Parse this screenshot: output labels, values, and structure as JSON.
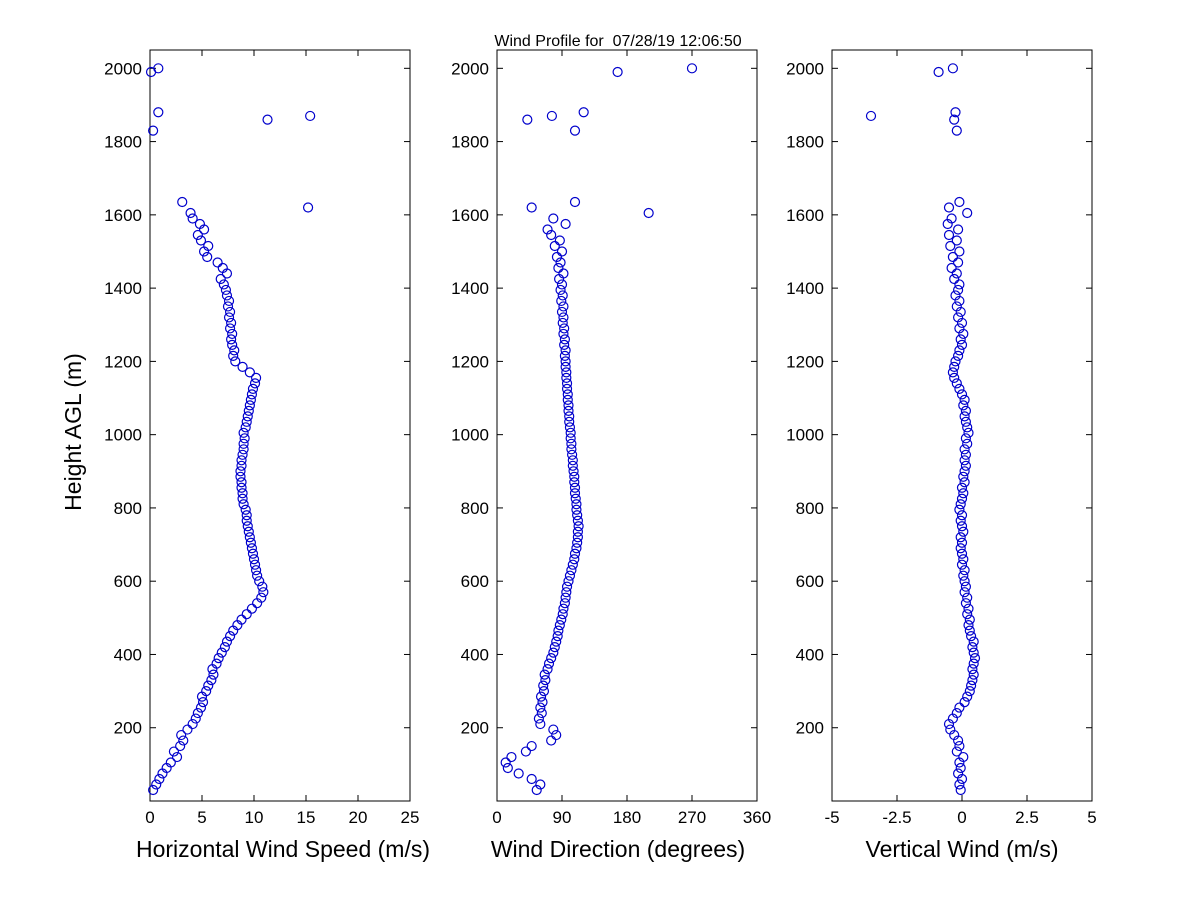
{
  "chart_data": {
    "type": "scatter",
    "title": "Wind Profile for  07/28/19 12:06:50",
    "ylabel": "Height AGL (m)",
    "ylim": [
      0,
      2050
    ],
    "yticks": [
      200,
      400,
      600,
      800,
      1000,
      1200,
      1400,
      1600,
      1800,
      2000
    ],
    "grid": false,
    "legend": "none",
    "marker": {
      "shape": "open-circle",
      "color": "#0000CC",
      "radius_px": 4.5
    },
    "colors": {
      "background": "#ffffff",
      "axis": "#000000"
    },
    "heights_m": [
      30,
      45,
      60,
      75,
      90,
      105,
      120,
      135,
      150,
      165,
      180,
      195,
      210,
      225,
      240,
      255,
      270,
      285,
      300,
      315,
      330,
      345,
      360,
      375,
      390,
      405,
      420,
      435,
      450,
      465,
      480,
      495,
      510,
      525,
      540,
      555,
      570,
      585,
      600,
      615,
      630,
      645,
      660,
      675,
      690,
      705,
      720,
      735,
      750,
      765,
      780,
      795,
      810,
      825,
      840,
      855,
      870,
      885,
      900,
      915,
      930,
      945,
      960,
      975,
      990,
      1005,
      1020,
      1035,
      1050,
      1065,
      1080,
      1095,
      1110,
      1125,
      1140,
      1155,
      1170,
      1185,
      1200,
      1215,
      1230,
      1245,
      1260,
      1275,
      1290,
      1305,
      1320,
      1335,
      1350,
      1365,
      1380,
      1395,
      1410,
      1425,
      1440,
      1455,
      1470,
      1485,
      1500,
      1515,
      1530,
      1545,
      1560,
      1575,
      1590,
      1605,
      1620,
      1635,
      1830,
      1860,
      1870,
      1880,
      1990,
      2000
    ],
    "series": [
      {
        "name": "Horizontal Wind Speed",
        "xlabel": "Horizontal Wind Speed (m/s)",
        "xlim": [
          0,
          25
        ],
        "xticks": [
          0,
          5,
          10,
          15,
          20,
          25
        ],
        "values": [
          0.3,
          0.6,
          0.9,
          1.2,
          1.6,
          2.0,
          2.6,
          2.3,
          2.9,
          3.2,
          3.0,
          3.6,
          4.1,
          4.4,
          4.6,
          4.9,
          5.1,
          5.0,
          5.4,
          5.6,
          5.9,
          6.1,
          6.0,
          6.4,
          6.6,
          6.9,
          7.2,
          7.4,
          7.7,
          8.0,
          8.4,
          8.8,
          9.3,
          9.8,
          10.3,
          10.7,
          10.9,
          10.8,
          10.5,
          10.3,
          10.2,
          10.1,
          10.0,
          9.9,
          9.8,
          9.7,
          9.6,
          9.5,
          9.4,
          9.3,
          9.3,
          9.2,
          9.0,
          8.9,
          8.9,
          8.8,
          8.8,
          8.7,
          8.7,
          8.8,
          8.8,
          8.9,
          9.0,
          9.0,
          9.1,
          9.0,
          9.2,
          9.3,
          9.4,
          9.5,
          9.6,
          9.7,
          9.8,
          9.9,
          10.1,
          10.2,
          9.6,
          8.9,
          8.2,
          8.0,
          8.1,
          7.9,
          7.8,
          7.9,
          7.7,
          7.8,
          7.6,
          7.7,
          7.5,
          7.6,
          7.4,
          7.3,
          7.1,
          6.8,
          7.4,
          7.0,
          6.5,
          5.5,
          5.2,
          5.6,
          4.9,
          4.6,
          5.2,
          4.8,
          4.1,
          3.9,
          15.2,
          3.1,
          0.3,
          11.3,
          15.4,
          0.8,
          0.1,
          0.8
        ]
      },
      {
        "name": "Wind Direction",
        "xlabel": "Wind Direction (degrees)",
        "xlim": [
          0,
          360
        ],
        "xticks": [
          0,
          90,
          180,
          270,
          360
        ],
        "values": [
          55,
          60,
          48,
          30,
          15,
          12,
          20,
          40,
          48,
          75,
          82,
          78,
          60,
          58,
          62,
          60,
          63,
          61,
          65,
          64,
          67,
          66,
          70,
          72,
          75,
          78,
          80,
          82,
          84,
          85,
          87,
          89,
          91,
          92,
          94,
          95,
          96,
          97,
          99,
          101,
          103,
          105,
          107,
          108,
          110,
          111,
          112,
          112,
          113,
          112,
          111,
          110,
          110,
          109,
          108,
          108,
          107,
          107,
          106,
          105,
          105,
          104,
          103,
          103,
          102,
          102,
          101,
          100,
          100,
          99,
          99,
          98,
          98,
          97,
          97,
          96,
          96,
          95,
          95,
          94,
          95,
          93,
          94,
          92,
          93,
          91,
          92,
          90,
          92,
          89,
          91,
          88,
          90,
          86,
          92,
          85,
          88,
          83,
          90,
          80,
          87,
          75,
          70,
          95,
          78,
          210,
          48,
          108,
          108,
          42,
          76,
          120,
          167,
          270
        ]
      },
      {
        "name": "Vertical Wind",
        "xlabel": "Vertical Wind (m/s)",
        "xlim": [
          -5,
          5
        ],
        "xticks": [
          -5,
          -2.5,
          0,
          2.5,
          5
        ],
        "values": [
          -0.05,
          -0.1,
          0.0,
          -0.15,
          -0.05,
          -0.1,
          0.05,
          -0.2,
          -0.1,
          -0.15,
          -0.3,
          -0.45,
          -0.5,
          -0.35,
          -0.2,
          -0.1,
          0.1,
          0.2,
          0.3,
          0.35,
          0.4,
          0.45,
          0.4,
          0.45,
          0.5,
          0.45,
          0.4,
          0.45,
          0.35,
          0.3,
          0.25,
          0.3,
          0.2,
          0.25,
          0.15,
          0.2,
          0.1,
          0.15,
          0.1,
          0.05,
          0.1,
          0.0,
          0.05,
          0.0,
          -0.05,
          0.0,
          -0.05,
          0.05,
          0.0,
          -0.05,
          0.0,
          -0.1,
          -0.05,
          0.0,
          0.05,
          0.0,
          0.1,
          0.05,
          0.1,
          0.15,
          0.1,
          0.15,
          0.1,
          0.2,
          0.15,
          0.25,
          0.2,
          0.15,
          0.1,
          0.15,
          0.05,
          0.1,
          0.0,
          -0.1,
          -0.2,
          -0.3,
          -0.35,
          -0.3,
          -0.25,
          -0.15,
          -0.1,
          0.0,
          -0.05,
          0.05,
          -0.1,
          0.0,
          -0.15,
          -0.05,
          -0.2,
          -0.1,
          -0.25,
          -0.15,
          -0.1,
          -0.3,
          -0.2,
          -0.4,
          -0.15,
          -0.35,
          -0.1,
          -0.45,
          -0.2,
          -0.5,
          -0.15,
          -0.55,
          -0.4,
          0.2,
          -0.5,
          -0.1,
          -0.2,
          -0.3,
          -3.5,
          -0.25,
          -0.9,
          -0.35
        ]
      }
    ]
  }
}
